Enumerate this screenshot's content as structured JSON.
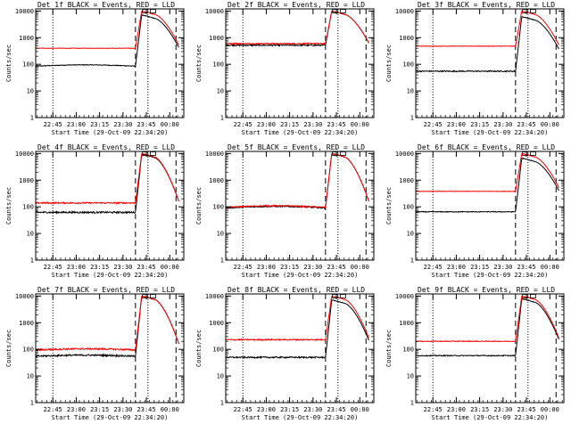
{
  "colors": {
    "events": "#000000",
    "lld": "#ff0000",
    "axis": "#000000",
    "background": "#ffffff"
  },
  "shared": {
    "ylabel": "Counts/sec",
    "xlabel": "Start Time (29-Oct-09 22:34:20)",
    "yticks": [
      "1",
      "10",
      "100",
      "1000",
      "10000"
    ],
    "xticks": [
      "22:45",
      "23:00",
      "23:15",
      "23:30",
      "23:45",
      "00:00"
    ]
  },
  "chart_data": [
    {
      "type": "line",
      "title": "Det 1f BLACK = Events, RED = LLD",
      "xlabel": "Start Time (29-Oct-09 22:34:20)",
      "xlabel_variant": "",
      "ylabel": "Counts/sec",
      "yscale": "log",
      "ylim": [
        1,
        12000
      ],
      "x_unit": "minutes after 22:34:20",
      "xlim": [
        0,
        95
      ],
      "markers": {
        "dotted": [
          11,
          72
        ],
        "dashed": [
          64,
          90
        ]
      },
      "series": [
        {
          "name": "Events",
          "base": 85,
          "noise": 0.03,
          "hump": 1.12
        },
        {
          "name": "LLD",
          "base": 400,
          "noise": 0.02,
          "hump": 1.0
        }
      ],
      "flare": {
        "start_min": 64,
        "peak": 10000,
        "end_min": 92,
        "end_value": 500
      }
    },
    {
      "type": "line",
      "title": "Det 2f BLACK = Events, RED = LLD",
      "xlabel": "Start Time (29-Oct-09 22:34:20)",
      "xlabel_variant": "",
      "ylabel": "Counts/sec",
      "yscale": "log",
      "ylim": [
        1,
        12000
      ],
      "x_unit": "minutes after 22:34:20",
      "xlim": [
        0,
        95
      ],
      "markers": {
        "dotted": [
          11,
          72
        ],
        "dashed": [
          64,
          90
        ]
      },
      "series": [
        {
          "name": "Events",
          "base": 520,
          "noise": 0.06,
          "hump": 1.0
        },
        {
          "name": "LLD",
          "base": 600,
          "noise": 0.05,
          "hump": 1.0
        }
      ],
      "flare": {
        "start_min": 64,
        "peak": 10000,
        "end_min": 92,
        "end_value": 600
      }
    },
    {
      "type": "line",
      "title": "Det 3f BLACK = Events, RED = LLD",
      "xlabel": "Start Time (29-Oct-09 22:34:20)",
      "xlabel_variant": "",
      "ylabel": "Counts/sec",
      "yscale": "log",
      "ylim": [
        1,
        12000
      ],
      "x_unit": "minutes after 22:34:20",
      "xlim": [
        0,
        95
      ],
      "markers": {
        "dotted": [
          11,
          72
        ],
        "dashed": [
          64,
          90
        ]
      },
      "series": [
        {
          "name": "Events",
          "base": 55,
          "noise": 0.05,
          "hump": 1.0
        },
        {
          "name": "LLD",
          "base": 480,
          "noise": 0.02,
          "hump": 1.0
        }
      ],
      "flare": {
        "start_min": 64,
        "peak": 10000,
        "end_min": 92,
        "end_value": 500
      }
    },
    {
      "type": "line",
      "title": "Det 4f BLACK = Events, RED = LLD",
      "xlabel": "Start Time (29-Oct-09 22:34:20)",
      "xlabel_variant": "",
      "ylabel": "Counts/sec",
      "yscale": "log",
      "ylim": [
        1,
        12000
      ],
      "x_unit": "minutes after 22:34:20",
      "xlim": [
        0,
        95
      ],
      "markers": {
        "dotted": [
          11,
          72
        ],
        "dashed": [
          64,
          90
        ]
      },
      "series": [
        {
          "name": "Events",
          "base": 62,
          "noise": 0.07,
          "hump": 1.0
        },
        {
          "name": "LLD",
          "base": 140,
          "noise": 0.06,
          "hump": 1.0
        }
      ],
      "flare": {
        "start_min": 64,
        "peak": 10000,
        "end_min": 92,
        "end_value": 150
      }
    },
    {
      "type": "line",
      "title": "Det 5f BLACK = Events, RED = LLD",
      "xlabel": "Start Time (29-Oct-09 22:34:20)",
      "xlabel_variant": "",
      "ylabel": "Counts/sec",
      "yscale": "log",
      "ylim": [
        1,
        12000
      ],
      "x_unit": "minutes after 22:34:20",
      "xlim": [
        0,
        95
      ],
      "markers": {
        "dotted": [
          11,
          72
        ],
        "dashed": [
          64,
          90
        ]
      },
      "series": [
        {
          "name": "Events",
          "base": 90,
          "noise": 0.05,
          "hump": 1.15
        },
        {
          "name": "LLD",
          "base": 95,
          "noise": 0.05,
          "hump": 1.15
        }
      ],
      "flare": {
        "start_min": 64,
        "peak": 10000,
        "end_min": 92,
        "end_value": 150
      }
    },
    {
      "type": "line",
      "title": "Det 6f BLACK = Events, RED = LLD",
      "xlabel": "Start Time (29-Oct-09 22:34:20)",
      "xlabel_variant": "",
      "ylabel": "Counts/sec",
      "yscale": "log",
      "ylim": [
        1,
        12000
      ],
      "x_unit": "minutes after 22:34:20",
      "xlim": [
        0,
        95
      ],
      "markers": {
        "dotted": [
          11,
          72
        ],
        "dashed": [
          64,
          90
        ]
      },
      "series": [
        {
          "name": "Events",
          "base": 65,
          "noise": 0.03,
          "hump": 1.0
        },
        {
          "name": "LLD",
          "base": 380,
          "noise": 0.02,
          "hump": 1.0
        }
      ],
      "flare": {
        "start_min": 64,
        "peak": 10000,
        "end_min": 92,
        "end_value": 500
      }
    },
    {
      "type": "line",
      "title": "Det 7f BLACK = Events, RED = LLD",
      "xlabel": "Start Time (29-Oct-09 22:34:20)",
      "xlabel_variant": "",
      "ylabel": "Counts/sec",
      "yscale": "log",
      "ylim": [
        1,
        12000
      ],
      "x_unit": "minutes after 22:34:20",
      "xlim": [
        0,
        95
      ],
      "markers": {
        "dotted": [
          11,
          72
        ],
        "dashed": [
          64,
          90
        ]
      },
      "series": [
        {
          "name": "Events",
          "base": 55,
          "noise": 0.07,
          "hump": 1.1
        },
        {
          "name": "LLD",
          "base": 95,
          "noise": 0.07,
          "hump": 1.1
        }
      ],
      "flare": {
        "start_min": 64,
        "peak": 10000,
        "end_min": 92,
        "end_value": 150
      }
    },
    {
      "type": "line",
      "title": "Det 8f BLACK = Events, RED = LLD",
      "xlabel": "Start Time (29-Oct-09 22:34:20)",
      "xlabel_variant": "",
      "ylabel": "Counts/sec",
      "yscale": "log",
      "ylim": [
        1,
        12000
      ],
      "x_unit": "minutes after 22:34:20",
      "xlim": [
        0,
        95
      ],
      "markers": {
        "dotted": [
          11,
          72
        ],
        "dashed": [
          64,
          90
        ]
      },
      "series": [
        {
          "name": "Events",
          "base": 50,
          "noise": 0.06,
          "hump": 1.0
        },
        {
          "name": "LLD",
          "base": 230,
          "noise": 0.05,
          "hump": 1.0
        }
      ],
      "flare": {
        "start_min": 64,
        "peak": 10000,
        "end_min": 92,
        "end_value": 250
      }
    },
    {
      "type": "line",
      "title": "Det 9f BLACK = Events, RED = LLD",
      "xlabel": "Start Time (29-Oct-09 22:34:20)",
      "xlabel_variant": "",
      "ylabel": "Counts/sec",
      "yscale": "log",
      "ylim": [
        1,
        12000
      ],
      "x_unit": "minutes after 22:34:20",
      "xlim": [
        0,
        95
      ],
      "markers": {
        "dotted": [
          11,
          72
        ],
        "dashed": [
          64,
          90
        ]
      },
      "series": [
        {
          "name": "Events",
          "base": 58,
          "noise": 0.04,
          "hump": 1.0
        },
        {
          "name": "LLD",
          "base": 200,
          "noise": 0.03,
          "hump": 1.0
        }
      ],
      "flare": {
        "start_min": 64,
        "peak": 10000,
        "end_min": 92,
        "end_value": 250
      }
    }
  ]
}
